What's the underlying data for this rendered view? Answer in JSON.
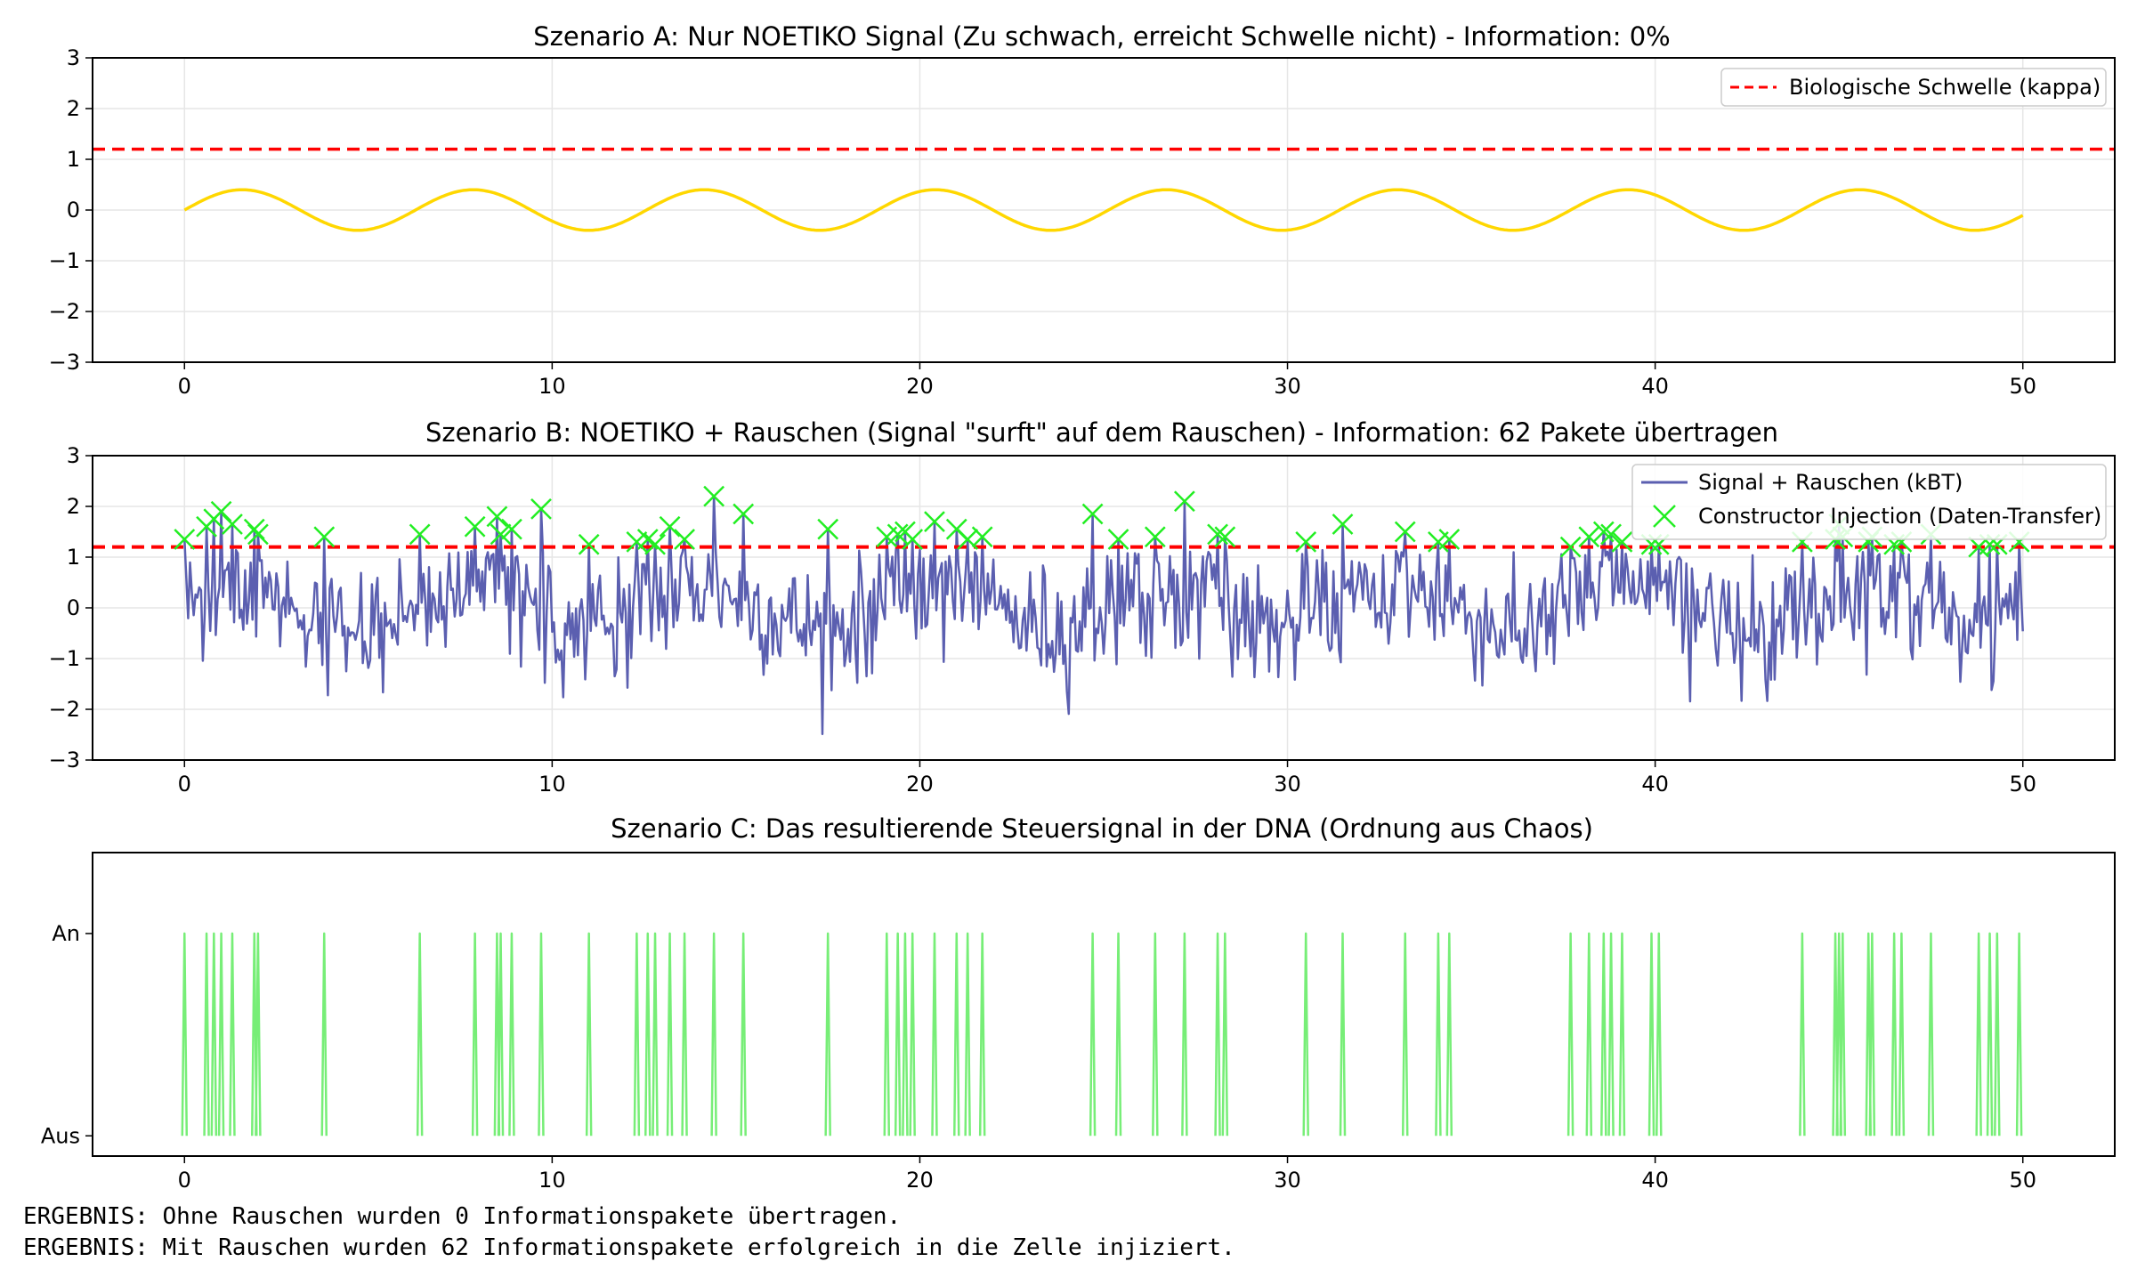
{
  "chart_data": [
    {
      "type": "line",
      "title": "Szenario A: Nur NOETIKO Signal (Zu schwach, erreicht Schwelle nicht) - Information: 0%",
      "xlim": [
        -2.5,
        52.5
      ],
      "ylim": [
        -3,
        3
      ],
      "xticks": [
        0,
        10,
        20,
        30,
        40,
        50
      ],
      "yticks": [
        3,
        2,
        1,
        0,
        -1,
        -2,
        -3
      ],
      "ytick_labels": [
        "3",
        "2",
        "1",
        "0",
        "−1",
        "−2",
        "−3"
      ],
      "grid": true,
      "legend_position": "top-right",
      "threshold": {
        "y": 1.2,
        "label": "Biologische Schwelle (kappa)",
        "color": "#ff0000",
        "style": "dashed"
      },
      "series": [
        {
          "type": "line",
          "description": "sine wave",
          "amplitude": 0.4,
          "period": 6.2832,
          "x_range": [
            0,
            50
          ],
          "color": "#ffd700"
        }
      ]
    },
    {
      "type": "line",
      "title": "Szenario B: NOETIKO + Rauschen (Signal \"surft\" auf dem Rauschen) - Information: 62 Pakete übertragen",
      "xlim": [
        -2.5,
        52.5
      ],
      "ylim": [
        -3,
        3
      ],
      "xticks": [
        0,
        10,
        20,
        30,
        40,
        50
      ],
      "yticks": [
        3,
        2,
        1,
        0,
        -1,
        -2,
        -3
      ],
      "ytick_labels": [
        "3",
        "2",
        "1",
        "0",
        "−1",
        "−2",
        "−3"
      ],
      "grid": true,
      "legend_position": "top-right",
      "threshold": {
        "y": 1.2,
        "color": "#ff0000",
        "style": "dashed"
      },
      "series": [
        {
          "name": "Signal + Rauschen (kBT)",
          "type": "line",
          "color": "#5b5fb0",
          "description": "noisy signal, sine plus noise",
          "x_range": [
            0,
            50
          ]
        },
        {
          "name": "Constructor Injection (Daten-Transfer)",
          "type": "scatter",
          "marker": "x",
          "color": "#22ee22",
          "points": [
            [
              0.0,
              1.35
            ],
            [
              0.6,
              1.6
            ],
            [
              0.8,
              1.75
            ],
            [
              1.0,
              1.9
            ],
            [
              1.3,
              1.65
            ],
            [
              1.9,
              1.55
            ],
            [
              2.0,
              1.45
            ],
            [
              3.8,
              1.4
            ],
            [
              6.4,
              1.45
            ],
            [
              7.9,
              1.6
            ],
            [
              8.5,
              1.8
            ],
            [
              8.6,
              1.45
            ],
            [
              8.9,
              1.55
            ],
            [
              9.7,
              1.95
            ],
            [
              11.0,
              1.25
            ],
            [
              12.3,
              1.3
            ],
            [
              12.6,
              1.35
            ],
            [
              12.8,
              1.25
            ],
            [
              13.2,
              1.6
            ],
            [
              13.6,
              1.35
            ],
            [
              14.4,
              2.2
            ],
            [
              15.2,
              1.85
            ],
            [
              17.5,
              1.55
            ],
            [
              19.1,
              1.4
            ],
            [
              19.4,
              1.45
            ],
            [
              19.6,
              1.5
            ],
            [
              19.8,
              1.35
            ],
            [
              20.4,
              1.7
            ],
            [
              21.0,
              1.55
            ],
            [
              21.3,
              1.35
            ],
            [
              21.7,
              1.4
            ],
            [
              24.7,
              1.85
            ],
            [
              25.4,
              1.35
            ],
            [
              26.4,
              1.4
            ],
            [
              27.2,
              2.1
            ],
            [
              28.1,
              1.45
            ],
            [
              28.3,
              1.4
            ],
            [
              30.5,
              1.3
            ],
            [
              31.5,
              1.65
            ],
            [
              33.2,
              1.5
            ],
            [
              34.1,
              1.3
            ],
            [
              34.4,
              1.35
            ],
            [
              37.7,
              1.2
            ],
            [
              38.2,
              1.4
            ],
            [
              38.6,
              1.5
            ],
            [
              38.8,
              1.45
            ],
            [
              39.1,
              1.3
            ],
            [
              39.9,
              1.25
            ],
            [
              40.1,
              1.25
            ],
            [
              44.0,
              1.3
            ],
            [
              44.9,
              1.35
            ],
            [
              45.0,
              1.65
            ],
            [
              45.1,
              1.4
            ],
            [
              45.8,
              1.3
            ],
            [
              45.9,
              1.4
            ],
            [
              46.5,
              1.25
            ],
            [
              46.7,
              1.3
            ],
            [
              47.5,
              1.45
            ],
            [
              48.8,
              1.2
            ],
            [
              49.1,
              1.25
            ],
            [
              49.3,
              1.25
            ],
            [
              49.9,
              1.3
            ]
          ]
        }
      ]
    },
    {
      "type": "line",
      "title": "Szenario C: Das resultierende Steuersignal in der DNA (Ordnung aus Chaos)",
      "xlim": [
        -2.5,
        52.5
      ],
      "ylim": [
        -0.1,
        1.4
      ],
      "xticks": [
        0,
        10,
        20,
        30,
        40,
        50
      ],
      "yticks": [
        1,
        0
      ],
      "ytick_labels": [
        "An",
        "Aus"
      ],
      "grid": false,
      "series": [
        {
          "type": "spikes",
          "color": "#77ee77",
          "value": 1,
          "x": [
            0.0,
            0.6,
            0.8,
            1.0,
            1.3,
            1.9,
            2.0,
            3.8,
            6.4,
            7.9,
            8.5,
            8.6,
            8.9,
            9.7,
            11.0,
            12.3,
            12.6,
            12.8,
            13.2,
            13.6,
            14.4,
            15.2,
            17.5,
            19.1,
            19.4,
            19.6,
            19.8,
            20.4,
            21.0,
            21.3,
            21.7,
            24.7,
            25.4,
            26.4,
            27.2,
            28.1,
            28.3,
            30.5,
            31.5,
            33.2,
            34.1,
            34.4,
            37.7,
            38.2,
            38.6,
            38.8,
            39.1,
            39.9,
            40.1,
            44.0,
            44.9,
            45.0,
            45.1,
            45.8,
            45.9,
            46.5,
            46.7,
            47.5,
            48.8,
            49.1,
            49.3,
            49.9
          ]
        }
      ]
    }
  ],
  "output": {
    "line1": "ERGEBNIS: Ohne Rauschen wurden 0 Informationspakete übertragen.",
    "line2": "ERGEBNIS: Mit Rauschen wurden 62 Informationspakete erfolgreich in die Zelle injiziert."
  }
}
